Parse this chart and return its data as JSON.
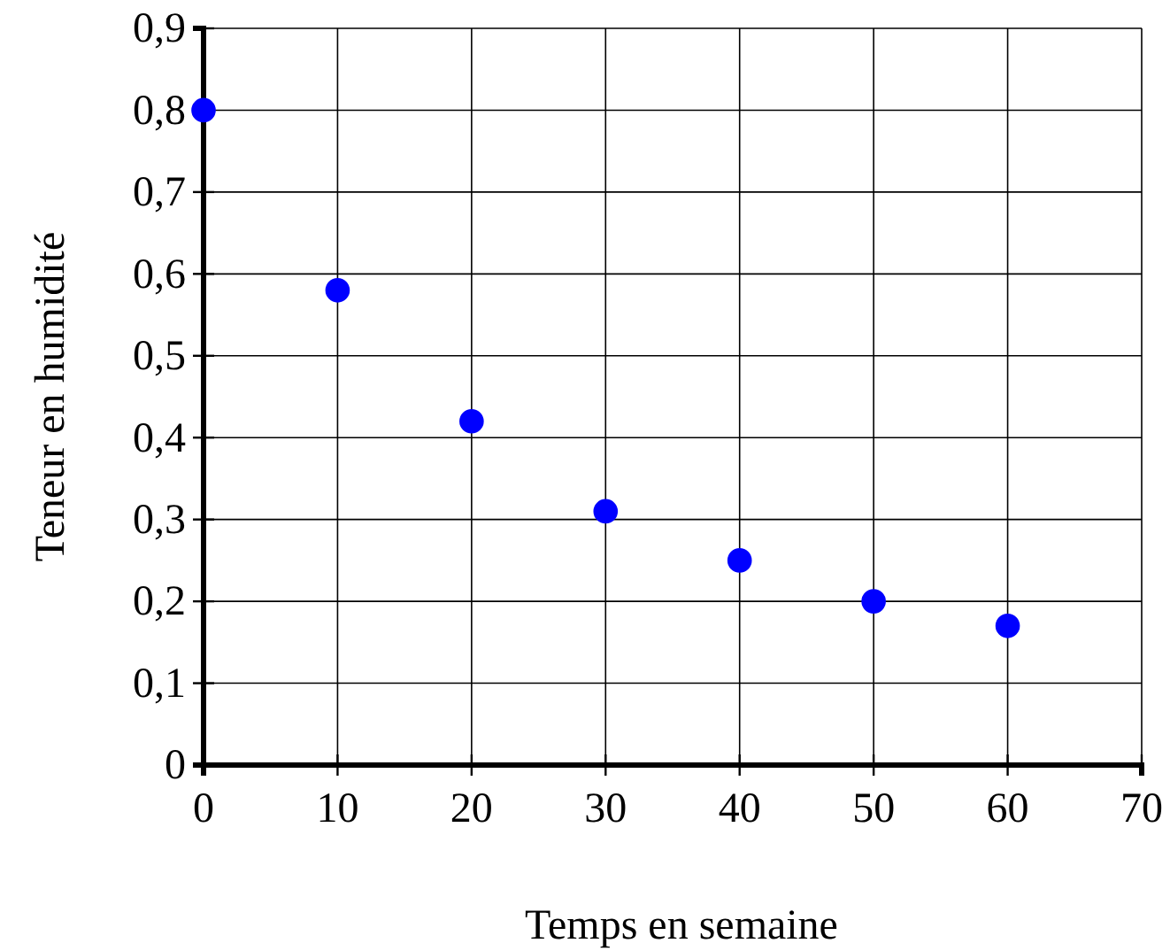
{
  "chart_data": {
    "type": "scatter",
    "xlabel": "Temps en semaine",
    "ylabel": "Teneur en humidité",
    "x": [
      0,
      10,
      20,
      30,
      40,
      50,
      60
    ],
    "series": [
      {
        "color": "#0000ff",
        "values": [
          0.8,
          0.58,
          0.42,
          0.31,
          0.25,
          0.2,
          0.17
        ]
      }
    ],
    "xlim": [
      0,
      70
    ],
    "xticks": [
      0,
      10,
      20,
      30,
      40,
      50,
      60,
      70
    ],
    "ylim": [
      0,
      0.9
    ],
    "yticks": [
      0,
      {
        "value": 0.1,
        "label": "0,1"
      },
      {
        "value": 0.2,
        "label": "0,2"
      },
      {
        "value": 0.3,
        "label": "0,3"
      },
      {
        "value": 0.4,
        "label": "0,4"
      },
      {
        "value": 0.5,
        "label": "0,5"
      },
      {
        "value": 0.6,
        "label": "0,6"
      },
      {
        "value": 0.7,
        "label": "0,7"
      },
      {
        "value": 0.8,
        "label": "0,8"
      },
      {
        "value": 0.9,
        "label": "0,9"
      }
    ],
    "grid": true,
    "marker": "circle"
  }
}
